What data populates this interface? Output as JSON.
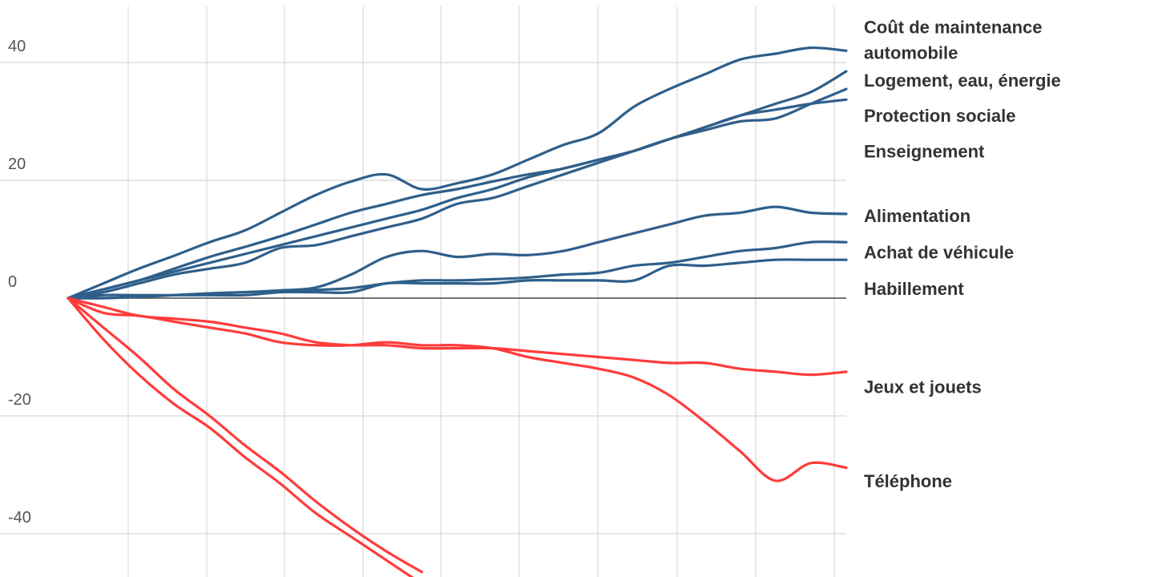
{
  "colors": {
    "up": "#2e5f8a",
    "down": "#ff3b3b",
    "grid": "#d8d8d8",
    "zero": "#444444"
  },
  "chart_data": {
    "type": "line",
    "title": "",
    "xlabel": "",
    "ylabel": "",
    "xlim": [
      0,
      11
    ],
    "ylim": [
      -47,
      50
    ],
    "y_ticks": [
      40,
      20,
      0,
      -20,
      -40
    ],
    "grid": true,
    "legend": "right, labels at line ends",
    "series": [
      {
        "name": "Coût de maintenance automobile",
        "color": "up",
        "x": [
          0,
          0.5,
          1,
          1.5,
          2,
          2.5,
          3,
          3.5,
          4,
          4.5,
          5,
          5.5,
          6,
          6.5,
          7,
          7.5,
          8,
          8.5,
          9,
          9.5,
          10,
          10.5,
          11
        ],
        "values": [
          0,
          2.5,
          5,
          7.2,
          9.5,
          11.5,
          14.5,
          17.5,
          19.8,
          21,
          18.5,
          19.5,
          21,
          23.5,
          26,
          28,
          32.5,
          35.5,
          38,
          40.5,
          41.5,
          42.5,
          42
        ]
      },
      {
        "name": "Logement, eau, énergie",
        "color": "up",
        "x": [
          0,
          0.5,
          1,
          1.5,
          2,
          2.5,
          3,
          3.5,
          4,
          4.5,
          5,
          5.5,
          6,
          6.5,
          7,
          7.5,
          8,
          8.5,
          9,
          9.5,
          10,
          10.5,
          11
        ],
        "values": [
          0,
          1.5,
          3,
          5,
          7,
          8.7,
          10.5,
          12.5,
          14.5,
          16,
          17.5,
          18.5,
          19.8,
          21,
          22,
          23.5,
          25,
          27,
          29,
          31,
          33,
          35,
          38.5
        ]
      },
      {
        "name": "Protection sociale",
        "color": "up",
        "x": [
          0,
          0.5,
          1,
          1.5,
          2,
          2.5,
          3,
          3.5,
          4,
          4.5,
          5,
          5.5,
          6,
          6.5,
          7,
          7.5,
          8,
          8.5,
          9,
          9.5,
          10,
          10.5,
          11
        ],
        "values": [
          0,
          1.5,
          3,
          4.5,
          6,
          7.5,
          9,
          10.5,
          12,
          13.5,
          15,
          17,
          18.5,
          20.5,
          22,
          23.5,
          25,
          27,
          29,
          31,
          32,
          33,
          33.7
        ]
      },
      {
        "name": "Enseignement",
        "color": "up",
        "x": [
          0,
          0.5,
          1,
          1.5,
          2,
          2.5,
          3,
          3.5,
          4,
          4.5,
          5,
          5.5,
          6,
          6.5,
          7,
          7.5,
          8,
          8.5,
          9,
          9.5,
          10,
          10.5,
          11
        ],
        "values": [
          0,
          1,
          2.5,
          4,
          5,
          6,
          8.5,
          9,
          10.5,
          12,
          13.5,
          16,
          17,
          19,
          21,
          23,
          25,
          27,
          28.5,
          30,
          30.5,
          33,
          35.5
        ]
      },
      {
        "name": "Alimentation",
        "color": "up",
        "x": [
          0,
          0.5,
          1,
          1.5,
          2,
          2.5,
          3,
          3.5,
          4,
          4.5,
          5,
          5.5,
          6,
          6.5,
          7,
          7.5,
          8,
          8.5,
          9,
          9.5,
          10,
          10.5,
          11
        ],
        "values": [
          0,
          0,
          0.2,
          0.5,
          0.8,
          1,
          1.3,
          1.8,
          4,
          7,
          8,
          7,
          7.5,
          7.3,
          8,
          9.5,
          11,
          12.5,
          14,
          14.5,
          15.5,
          14.5,
          14.3
        ]
      },
      {
        "name": "Achat de véhicule",
        "color": "up",
        "x": [
          0,
          0.5,
          1,
          1.5,
          2,
          2.5,
          3,
          3.5,
          4,
          4.5,
          5,
          5.5,
          6,
          6.5,
          7,
          7.5,
          8,
          8.5,
          9,
          9.5,
          10,
          10.5,
          11
        ],
        "values": [
          0,
          0,
          0.3,
          0.5,
          0.8,
          1,
          1.2,
          1.4,
          1.7,
          2.5,
          3,
          3,
          3.2,
          3.5,
          4,
          4.3,
          5.5,
          6,
          7,
          8,
          8.5,
          9.5,
          9.5
        ]
      },
      {
        "name": "Habillement",
        "color": "up",
        "x": [
          0,
          0.5,
          1,
          1.5,
          2,
          2.5,
          3,
          3.5,
          4,
          4.5,
          5,
          5.5,
          6,
          6.5,
          7,
          7.5,
          8,
          8.5,
          9,
          9.5,
          10,
          10.5,
          11
        ],
        "values": [
          0,
          0.5,
          0.5,
          0.5,
          0.5,
          0.5,
          1,
          1,
          1,
          2.5,
          2.5,
          2.5,
          2.5,
          3,
          3,
          3,
          3,
          5.5,
          5.5,
          6,
          6.5,
          6.5,
          6.5
        ]
      },
      {
        "name": "Jeux et jouets",
        "color": "down",
        "x": [
          0,
          0.5,
          1,
          1.5,
          2,
          2.5,
          3,
          3.5,
          4,
          4.5,
          5,
          5.5,
          6,
          6.5,
          7,
          7.5,
          8,
          8.5,
          9,
          9.5,
          10,
          10.5,
          11
        ],
        "values": [
          0,
          -1.5,
          -3,
          -3.5,
          -4,
          -5,
          -6,
          -7.5,
          -8,
          -8,
          -8.5,
          -8.5,
          -8.5,
          -9,
          -9.5,
          -10,
          -10.5,
          -11,
          -11,
          -12,
          -12.5,
          -13,
          -12.5
        ]
      },
      {
        "name": "Téléphone",
        "color": "down",
        "x": [
          0,
          0.5,
          1,
          1.5,
          2,
          2.5,
          3,
          3.5,
          4,
          4.5,
          5,
          5.5,
          6,
          6.5,
          7,
          7.5,
          8,
          8.5,
          9,
          9.5,
          10,
          10.5,
          11
        ],
        "values": [
          0,
          -2.5,
          -3,
          -4,
          -5,
          -6,
          -7.5,
          -8,
          -8,
          -7.5,
          -8,
          -8,
          -8.5,
          -10,
          -11,
          -12,
          -13.5,
          -16.5,
          -21,
          -26,
          -31,
          -28,
          -28.8
        ]
      },
      {
        "name": "",
        "color": "down",
        "x": [
          0,
          0.5,
          1,
          1.5,
          2,
          2.5,
          3,
          3.5,
          4,
          4.5,
          5
        ],
        "values": [
          0,
          -5,
          -10,
          -15.5,
          -20,
          -25,
          -29.5,
          -34.5,
          -39,
          -43,
          -46.5
        ]
      },
      {
        "name": "",
        "color": "down",
        "x": [
          0,
          0.5,
          1,
          1.5,
          2,
          2.5,
          3,
          3.5,
          4,
          4.5,
          5
        ],
        "values": [
          0,
          -7,
          -13,
          -18,
          -22,
          -27,
          -31.5,
          -36.5,
          -40.5,
          -44.5,
          -48.5
        ]
      }
    ]
  },
  "legend_labels": [
    {
      "lines": [
        "Coût de maintenance",
        "automobile"
      ],
      "y": 42
    },
    {
      "lines": [
        "Logement, eau, énergie"
      ],
      "y": 37
    },
    {
      "lines": [
        "Protection sociale"
      ],
      "y": 31
    },
    {
      "lines": [
        "Enseignement"
      ],
      "y": 25
    },
    {
      "lines": [
        "Alimentation"
      ],
      "y": 14
    },
    {
      "lines": [
        "Achat de véhicule"
      ],
      "y": 7.8
    },
    {
      "lines": [
        "Habillement"
      ],
      "y": 1.6
    },
    {
      "lines": [
        "Jeux et jouets"
      ],
      "y": -15
    },
    {
      "lines": [
        "Téléphone"
      ],
      "y": -31
    }
  ]
}
